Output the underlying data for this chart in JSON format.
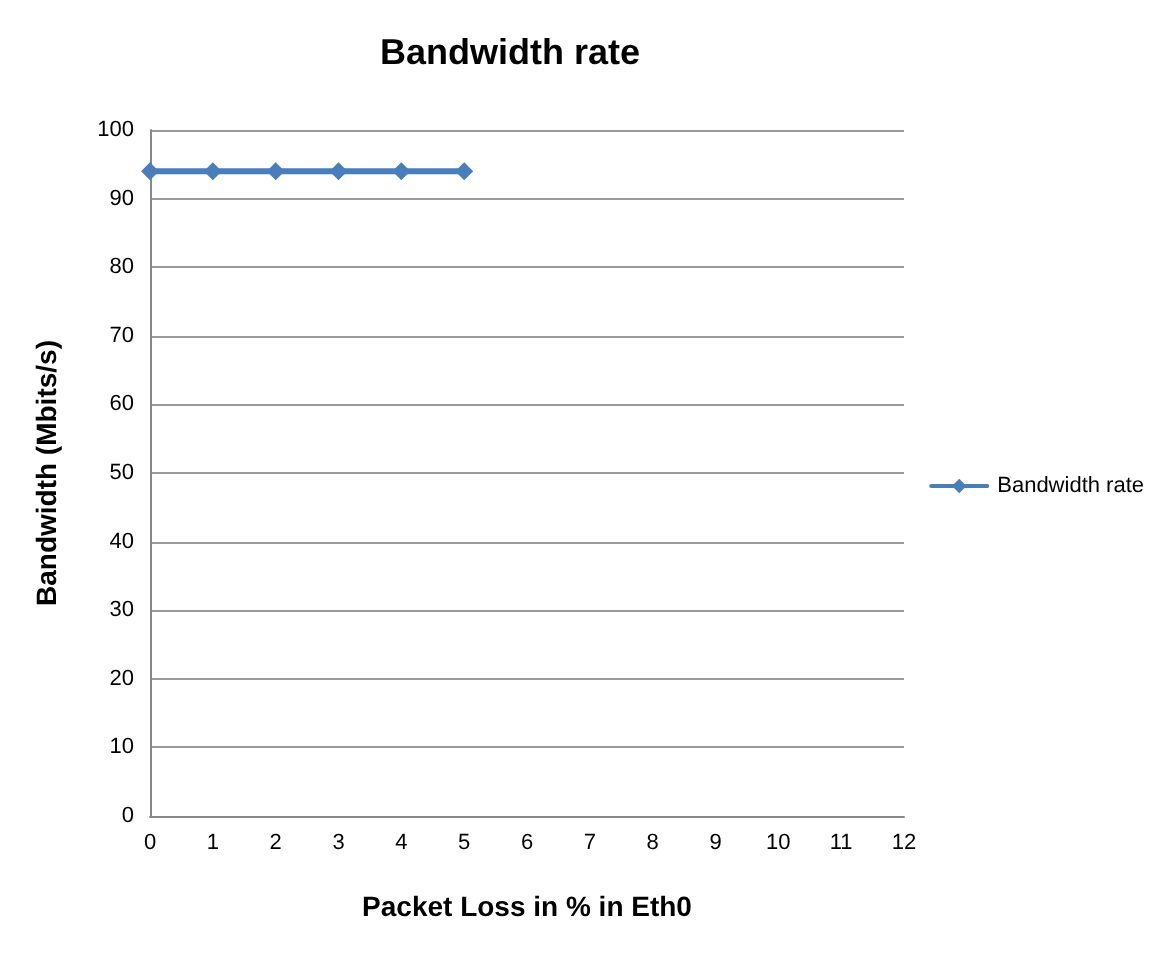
{
  "chart_data": {
    "type": "line",
    "title": "Bandwidth rate",
    "xlabel": "Packet Loss in % in Eth0",
    "ylabel": "Bandwidth (Mbits/s)",
    "x": [
      0,
      1,
      2,
      3,
      4,
      5
    ],
    "xlim": [
      0,
      12
    ],
    "xticks": [
      0,
      1,
      2,
      3,
      4,
      5,
      6,
      7,
      8,
      9,
      10,
      11,
      12
    ],
    "series": [
      {
        "name": "Bandwidth rate",
        "color": "#4a7ebb",
        "values": [
          94,
          94,
          94,
          94,
          94,
          94
        ]
      }
    ],
    "ylim": [
      0,
      100
    ],
    "yticks": [
      0,
      10,
      20,
      30,
      40,
      50,
      60,
      70,
      80,
      90,
      100
    ],
    "grid": "y",
    "legend": "right",
    "marker": "diamond",
    "line_style": "solid"
  }
}
